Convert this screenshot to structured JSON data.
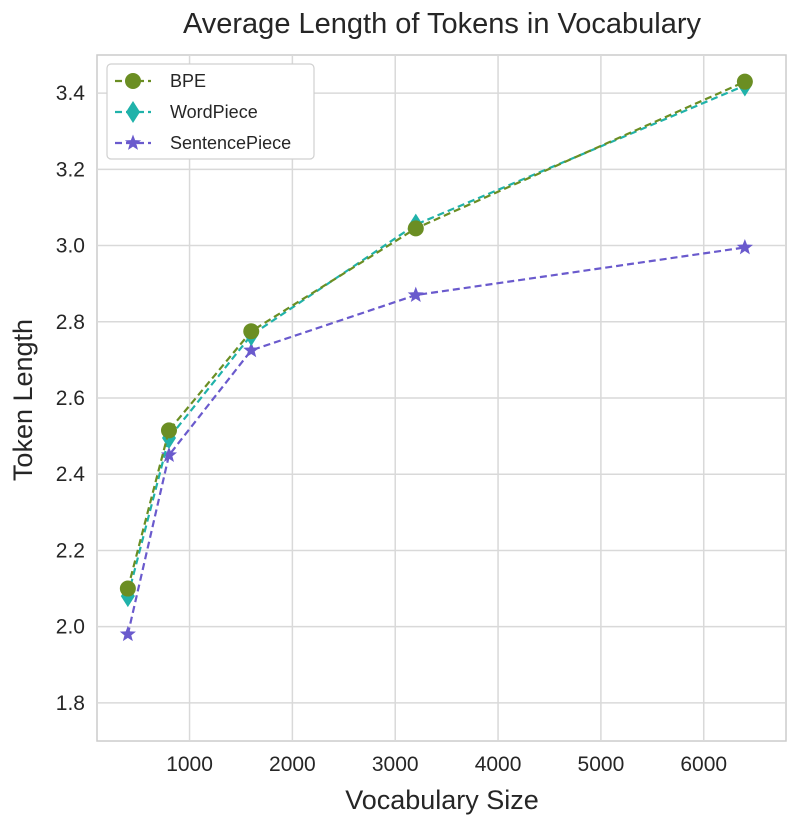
{
  "chart_data": {
    "type": "line",
    "title": "Average Length of Tokens in Vocabulary",
    "xlabel": "Vocabulary Size",
    "ylabel": "Token Length",
    "x": [
      400,
      800,
      1600,
      3200,
      6400
    ],
    "xlim": [
      100,
      6800
    ],
    "ylim": [
      1.7,
      3.5
    ],
    "xticks": [
      1000,
      2000,
      3000,
      4000,
      5000,
      6000
    ],
    "yticks": [
      1.8,
      2.0,
      2.2,
      2.4,
      2.6,
      2.8,
      3.0,
      3.2,
      3.4
    ],
    "xtick_labels": [
      "1000",
      "2000",
      "3000",
      "4000",
      "5000",
      "6000"
    ],
    "ytick_labels": [
      "1.8",
      "2.0",
      "2.2",
      "2.4",
      "2.6",
      "2.8",
      "3.0",
      "3.2",
      "3.4"
    ],
    "grid": true,
    "legend_position": "top-left",
    "series": [
      {
        "name": "BPE",
        "marker": "circle",
        "color": "#6b8e23",
        "values": [
          2.1,
          2.515,
          2.775,
          3.045,
          3.43
        ]
      },
      {
        "name": "WordPiece",
        "marker": "diamond",
        "color": "#20b2aa",
        "values": [
          2.08,
          2.495,
          2.765,
          3.055,
          3.42
        ]
      },
      {
        "name": "SentencePiece",
        "marker": "star",
        "color": "#6a5acd",
        "values": [
          1.98,
          2.45,
          2.725,
          2.87,
          2.995
        ]
      }
    ]
  }
}
